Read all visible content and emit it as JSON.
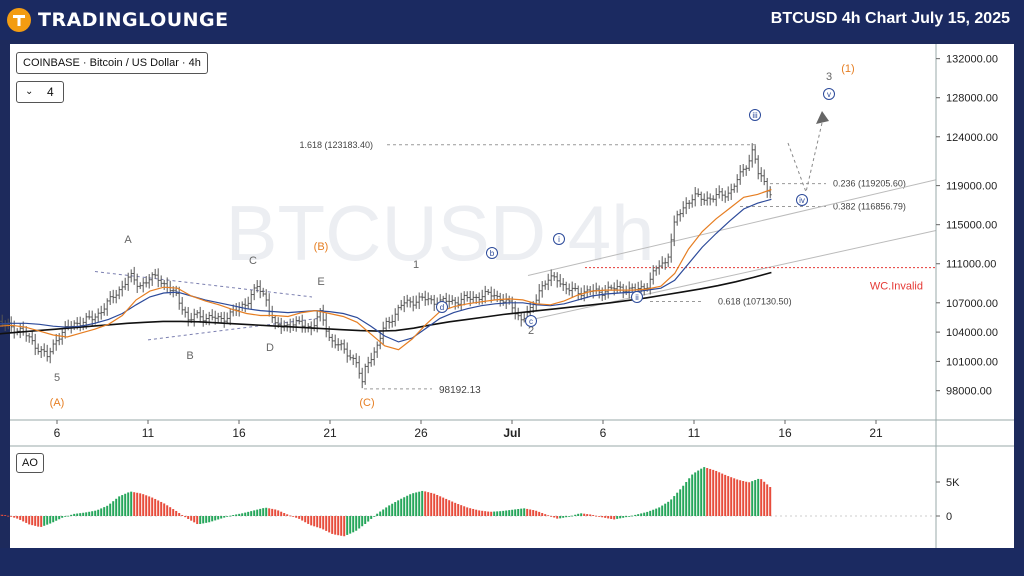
{
  "header": {
    "logo_text": "TRADINGLOUNGE",
    "title": "BTCUSD 4h Chart  July 15, 2025"
  },
  "symbol_label": "COINBASE · Bitcoin / US Dollar · 4h",
  "count_value": "4",
  "watermark": "BTCUSD 4h",
  "indicator_label": "AO",
  "chart_data": {
    "type": "line",
    "price_axis": {
      "ticks": [
        "132000.00",
        "128000.00",
        "124000.00",
        "119000.00",
        "115000.00",
        "111000.00",
        "107000.00",
        "104000.00",
        "101000.00",
        "98000.00"
      ],
      "ylim": [
        95000,
        133500
      ]
    },
    "time_axis": {
      "ticks": [
        "6",
        "11",
        "16",
        "21",
        "26",
        "Jul",
        "6",
        "11",
        "16",
        "21"
      ]
    },
    "ao_axis": {
      "ticks": [
        "5K",
        "0"
      ]
    },
    "series": [
      {
        "name": "BTCUSD",
        "style": "ohlc"
      },
      {
        "name": "",
        "color": "#e67e22"
      },
      {
        "name": "",
        "color": "#2c4a9a"
      },
      {
        "name": "",
        "color": "#111111"
      }
    ],
    "price_points": [
      [
        "06-02 00",
        105900
      ],
      [
        "06-02 12",
        105300
      ],
      [
        "06-03",
        104800
      ],
      [
        "06-04",
        104200
      ],
      [
        "06-05",
        102300
      ],
      [
        "06-05 12",
        101400
      ],
      [
        "06-06",
        103500
      ],
      [
        "06-06 12",
        104300
      ],
      [
        "06-07",
        104900
      ],
      [
        "06-08",
        105400
      ],
      [
        "06-09",
        107400
      ],
      [
        "06-10",
        109700
      ],
      [
        "06-10 12",
        108800
      ],
      [
        "06-11",
        109300
      ],
      [
        "06-11 12",
        109700
      ],
      [
        "06-12",
        108700
      ],
      [
        "06-12 12",
        107800
      ],
      [
        "06-13",
        106300
      ],
      [
        "06-13 06",
        104900
      ],
      [
        "06-13 12",
        105700
      ],
      [
        "06-14",
        105600
      ],
      [
        "06-15",
        105300
      ],
      [
        "06-16",
        106400
      ],
      [
        "06-16 12",
        107300
      ],
      [
        "06-17",
        108600
      ],
      [
        "06-17 12",
        107400
      ],
      [
        "06-18",
        104500
      ],
      [
        "06-19",
        104900
      ],
      [
        "06-20",
        104500
      ],
      [
        "06-20 12",
        105900
      ],
      [
        "06-21",
        103300
      ],
      [
        "06-22",
        101800
      ],
      [
        "06-22 12",
        100800
      ],
      [
        "06-22 18",
        98400
      ],
      [
        "06-23",
        100900
      ],
      [
        "06-23 12",
        102100
      ],
      [
        "06-24",
        104600
      ],
      [
        "06-24 12",
        105700
      ],
      [
        "06-25",
        106900
      ],
      [
        "06-26",
        107400
      ],
      [
        "06-27",
        107100
      ],
      [
        "06-28",
        107200
      ],
      [
        "06-29",
        107600
      ],
      [
        "06-30",
        107900
      ],
      [
        "07-01",
        106600
      ],
      [
        "07-01 12",
        105300
      ],
      [
        "07-02",
        106100
      ],
      [
        "07-02 12",
        108400
      ],
      [
        "07-03",
        109300
      ],
      [
        "07-03 12",
        109600
      ],
      [
        "07-04",
        108300
      ],
      [
        "07-05",
        108100
      ],
      [
        "07-06",
        108200
      ],
      [
        "07-07",
        108600
      ],
      [
        "07-07 12",
        108200
      ],
      [
        "07-08",
        108500
      ],
      [
        "07-08 12",
        108900
      ],
      [
        "07-09",
        110800
      ],
      [
        "07-09 12",
        111300
      ],
      [
        "07-10",
        115600
      ],
      [
        "07-10 12",
        117100
      ],
      [
        "07-11",
        117800
      ],
      [
        "07-12",
        117700
      ],
      [
        "07-13",
        118400
      ],
      [
        "07-13 12",
        119900
      ],
      [
        "07-14",
        121600
      ],
      [
        "07-14 06",
        122800
      ],
      [
        "07-14 12",
        120300
      ],
      [
        "07-15",
        118800
      ],
      [
        "07-15 06",
        118300
      ]
    ],
    "ema_fast": [
      104500,
      104600,
      104700,
      104500,
      104100,
      103700,
      103500,
      103900,
      104300,
      104800,
      105700,
      107300,
      108200,
      108600,
      108500,
      107700,
      107200,
      106800,
      106300,
      105900,
      105700,
      105700,
      105600,
      106000,
      106200,
      105900,
      105600,
      105000,
      103800,
      102600,
      102200,
      103300,
      104800,
      106100,
      106600,
      106900,
      107100,
      107300,
      107400,
      107300,
      106900,
      106800,
      107200,
      107800,
      108200,
      108300,
      108300,
      108300,
      108400,
      108700,
      110000,
      112500,
      114300,
      115600,
      116700,
      117800,
      118100,
      118600
    ],
    "ema_slow": [
      104800,
      104850,
      104900,
      104900,
      104800,
      104600,
      104500,
      104600,
      104900,
      105300,
      105900,
      106800,
      107600,
      108000,
      108100,
      107700,
      107300,
      107000,
      106700,
      106400,
      106200,
      106100,
      106000,
      106100,
      106200,
      106100,
      105900,
      105500,
      104600,
      103600,
      103000,
      103400,
      104400,
      105400,
      106000,
      106400,
      106700,
      106900,
      107000,
      107000,
      106800,
      106700,
      106900,
      107300,
      107700,
      107900,
      108000,
      108100,
      108300,
      108500,
      109300,
      111000,
      112700,
      114100,
      115400,
      116600,
      117200,
      117600
    ],
    "sma_200": [
      103700,
      103850,
      104000,
      104150,
      104300,
      104450,
      104600,
      104750,
      104900,
      105000,
      105100,
      105100,
      105050,
      104950,
      104850,
      104750,
      104650,
      104550,
      104450,
      104350,
      104250,
      104150,
      104100,
      104150,
      104400,
      104750,
      105050,
      105300,
      105550,
      105800,
      106000,
      106200,
      106400,
      106600,
      106800,
      107000,
      107250,
      107500,
      107800,
      108100,
      108400,
      108750,
      109150,
      109600,
      110100
    ],
    "ao_values": [
      0.2,
      0.3,
      0.1,
      -0.4,
      -1.2,
      -1.6,
      -1.0,
      -0.2,
      0.3,
      0.5,
      0.8,
      1.5,
      2.8,
      3.5,
      3.2,
      2.6,
      1.8,
      0.8,
      -0.3,
      -1.2,
      -0.9,
      -0.4,
      0.1,
      0.4,
      0.8,
      1.2,
      0.9,
      0.2,
      -0.4,
      -1.3,
      -1.8,
      -2.6,
      -2.9,
      -2.2,
      -1.0,
      0.4,
      1.5,
      2.4,
      3.2,
      3.6,
      3.2,
      2.5,
      1.8,
      1.2,
      0.8,
      0.6,
      0.7,
      0.9,
      1.1,
      0.8,
      0.2,
      -0.4,
      -0.1,
      0.4,
      0.2,
      -0.2,
      -0.5,
      -0.2,
      0.2,
      0.6,
      1.2,
      2.2,
      4.0,
      6.0,
      7.0,
      6.5,
      5.8,
      5.2,
      4.8,
      5.4,
      4.0
    ],
    "annotations": [
      {
        "text": "A",
        "style": "gray"
      },
      {
        "text": "B",
        "style": "gray"
      },
      {
        "text": "C",
        "style": "gray"
      },
      {
        "text": "D",
        "style": "gray"
      },
      {
        "text": "E",
        "style": "gray"
      },
      {
        "text": "5",
        "style": "gray"
      },
      {
        "text": "1",
        "style": "gray"
      },
      {
        "text": "2",
        "style": "gray"
      },
      {
        "text": "3",
        "style": "gray"
      },
      {
        "text": "(A)",
        "style": "orange"
      },
      {
        "text": "(B)",
        "style": "orange"
      },
      {
        "text": "(C)",
        "style": "orange"
      },
      {
        "text": "(1)",
        "style": "orange"
      },
      {
        "text": "b",
        "style": "circle"
      },
      {
        "text": "d",
        "style": "circle"
      },
      {
        "text": "c",
        "style": "circle"
      },
      {
        "text": "i",
        "style": "circle"
      },
      {
        "text": "ii",
        "style": "circle"
      },
      {
        "text": "iii",
        "style": "circle"
      },
      {
        "text": "iv",
        "style": "circle"
      },
      {
        "text": "v",
        "style": "circle"
      }
    ],
    "fib_levels": [
      {
        "label": "1.618 (123183.40)",
        "value": 123183.4
      },
      {
        "label": "0.236 (119205.60)",
        "value": 119205.6
      },
      {
        "label": "0.382 (116856.79)",
        "value": 116856.79
      },
      {
        "label": "0.618 (107130.50)",
        "value": 107130.5
      }
    ],
    "low_label": {
      "text": "98192.13",
      "value": 98192.13
    },
    "invalidation": {
      "text": "WC.Invalid",
      "value": 110600,
      "color": "#e53935"
    }
  }
}
